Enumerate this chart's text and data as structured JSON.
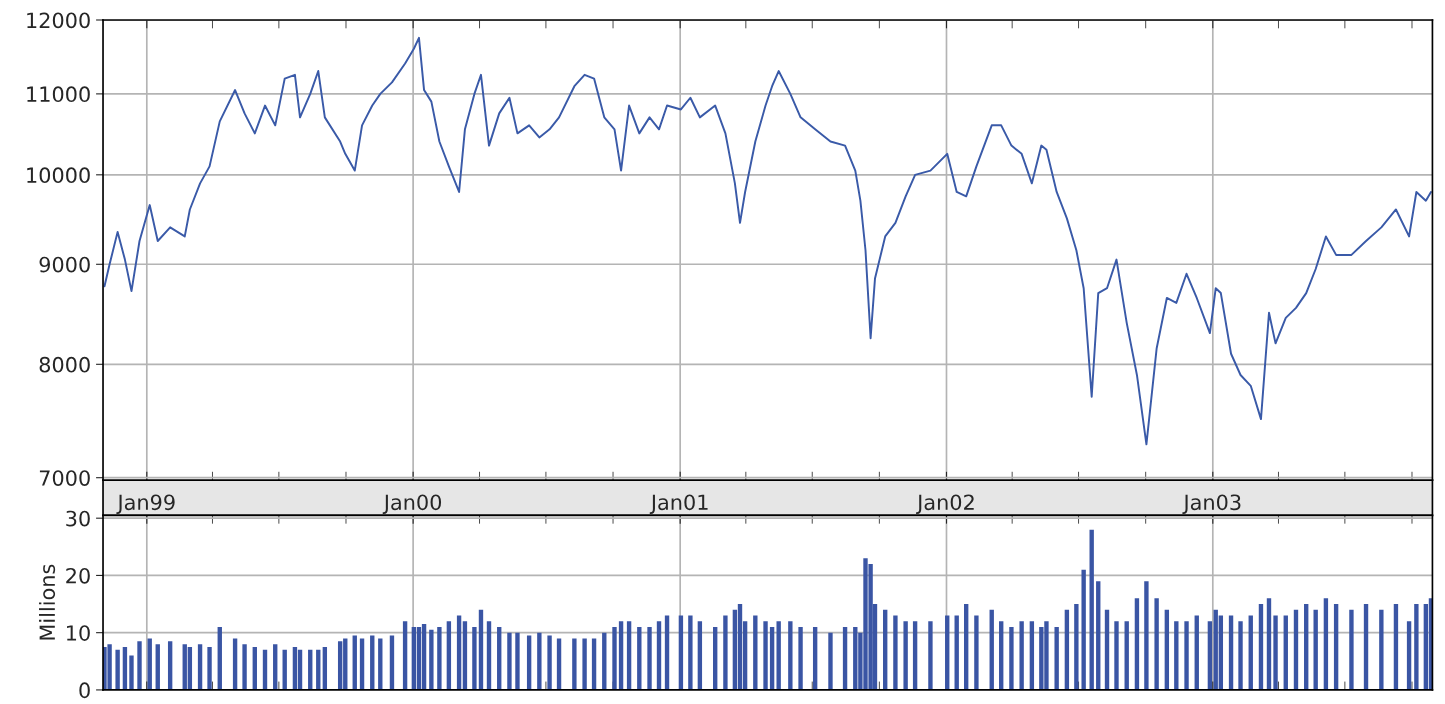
{
  "chart_data": [
    {
      "type": "line",
      "log": true,
      "grid": true,
      "ylim": [
        6980,
        12000
      ],
      "yticks": [
        7000,
        8000,
        9000,
        10000,
        11000,
        12000
      ],
      "xlim": [
        "1998-11-02",
        "2003-10-29"
      ],
      "xticks": [
        {
          "value": "1999-01-01",
          "label": "Jan99"
        },
        {
          "value": "1999-04-01",
          "label": null
        },
        {
          "value": "1999-07-01",
          "label": null
        },
        {
          "value": "1999-10-01",
          "label": null
        },
        {
          "value": "2000-01-01",
          "label": "Jan00"
        },
        {
          "value": "2000-04-01",
          "label": null
        },
        {
          "value": "2000-07-01",
          "label": null
        },
        {
          "value": "2000-10-01",
          "label": null
        },
        {
          "value": "2001-01-01",
          "label": "Jan01"
        },
        {
          "value": "2001-04-01",
          "label": null
        },
        {
          "value": "2001-07-01",
          "label": null
        },
        {
          "value": "2001-10-01",
          "label": null
        },
        {
          "value": "2002-01-01",
          "label": "Jan02"
        },
        {
          "value": "2002-04-01",
          "label": null
        },
        {
          "value": "2002-07-01",
          "label": null
        },
        {
          "value": "2002-10-01",
          "label": null
        },
        {
          "value": "2003-01-01",
          "label": "Jan03"
        },
        {
          "value": "2003-04-01",
          "label": null
        },
        {
          "value": "2003-07-01",
          "label": null
        },
        {
          "value": "2003-10-01",
          "label": null
        }
      ],
      "x": [
        "1998-11-04",
        "1998-11-11",
        "1998-11-22",
        "1998-12-02",
        "1998-12-11",
        "1998-12-22",
        "1999-01-05",
        "1999-01-16",
        "1999-02-02",
        "1999-02-22",
        "1999-03-01",
        "1999-03-15",
        "1999-03-28",
        "1999-04-11",
        "1999-05-02",
        "1999-05-15",
        "1999-05-29",
        "1999-06-12",
        "1999-06-26",
        "1999-07-09",
        "1999-07-23",
        "1999-07-30",
        "1999-08-13",
        "1999-08-24",
        "1999-09-02",
        "1999-09-23",
        "1999-09-30",
        "1999-10-13",
        "1999-10-23",
        "1999-11-06",
        "1999-11-17",
        "1999-12-03",
        "1999-12-21",
        "2000-01-02",
        "2000-01-09",
        "2000-01-16",
        "2000-01-26",
        "2000-02-06",
        "2000-02-19",
        "2000-03-04",
        "2000-03-12",
        "2000-03-25",
        "2000-04-03",
        "2000-04-14",
        "2000-04-28",
        "2000-05-12",
        "2000-05-23",
        "2000-06-08",
        "2000-06-22",
        "2000-07-06",
        "2000-07-19",
        "2000-08-09",
        "2000-08-23",
        "2000-09-05",
        "2000-09-19",
        "2000-10-03",
        "2000-10-12",
        "2000-10-23",
        "2000-11-06",
        "2000-11-20",
        "2000-12-03",
        "2000-12-14",
        "2001-01-02",
        "2001-01-15",
        "2001-01-28",
        "2001-02-18",
        "2001-03-04",
        "2001-03-17",
        "2001-03-24",
        "2001-03-31",
        "2001-04-14",
        "2001-04-28",
        "2001-05-07",
        "2001-05-16",
        "2001-06-01",
        "2001-06-15",
        "2001-07-05",
        "2001-07-26",
        "2001-08-15",
        "2001-08-29",
        "2001-09-05",
        "2001-09-12",
        "2001-09-19",
        "2001-09-25",
        "2001-10-09",
        "2001-10-23",
        "2001-11-06",
        "2001-11-19",
        "2001-12-10",
        "2002-01-02",
        "2002-01-15",
        "2002-01-28",
        "2002-02-11",
        "2002-03-04",
        "2002-03-17",
        "2002-03-31",
        "2002-04-14",
        "2002-04-28",
        "2002-05-11",
        "2002-05-18",
        "2002-06-01",
        "2002-06-15",
        "2002-06-28",
        "2002-07-08",
        "2002-07-19",
        "2002-07-28",
        "2002-08-09",
        "2002-08-22",
        "2002-09-05",
        "2002-09-19",
        "2002-10-02",
        "2002-10-16",
        "2002-10-30",
        "2002-11-12",
        "2002-11-26",
        "2002-12-10",
        "2002-12-28",
        "2003-01-05",
        "2003-01-12",
        "2003-01-26",
        "2003-02-08",
        "2003-02-22",
        "2003-03-08",
        "2003-03-19",
        "2003-03-28",
        "2003-04-11",
        "2003-04-25",
        "2003-05-09",
        "2003-05-22",
        "2003-06-05",
        "2003-06-19",
        "2003-07-10",
        "2003-07-30",
        "2003-08-20",
        "2003-09-09",
        "2003-09-27",
        "2003-10-07",
        "2003-10-20",
        "2003-10-27"
      ],
      "series": [
        {
          "color": "#3a5aa8",
          "values": [
            8770,
            9000,
            9350,
            9050,
            8720,
            9250,
            9650,
            9250,
            9400,
            9300,
            9600,
            9900,
            10100,
            10650,
            11050,
            10750,
            10500,
            10850,
            10600,
            11200,
            11250,
            10700,
            11000,
            11300,
            10700,
            10400,
            10250,
            10050,
            10600,
            10850,
            11000,
            11150,
            11400,
            11600,
            11750,
            11050,
            10900,
            10400,
            10100,
            9800,
            10550,
            11000,
            11250,
            10350,
            10750,
            10950,
            10500,
            10600,
            10450,
            10550,
            10700,
            11100,
            11250,
            11200,
            10700,
            10550,
            10050,
            10850,
            10500,
            10700,
            10550,
            10850,
            10800,
            10950,
            10700,
            10850,
            10500,
            9900,
            9450,
            9800,
            10400,
            10850,
            11100,
            11300,
            11000,
            10700,
            10550,
            10400,
            10350,
            10050,
            9700,
            9150,
            8250,
            8850,
            9300,
            9450,
            9750,
            10000,
            10050,
            10250,
            9800,
            9750,
            10100,
            10600,
            10600,
            10350,
            10250,
            9900,
            10350,
            10300,
            9800,
            9500,
            9150,
            8750,
            7700,
            8700,
            8750,
            9050,
            8400,
            7900,
            7280,
            8150,
            8650,
            8600,
            8900,
            8650,
            8300,
            8750,
            8700,
            8100,
            7900,
            7800,
            7500,
            8500,
            8200,
            8450,
            8550,
            8700,
            8950,
            9300,
            9100,
            9100,
            9250,
            9400,
            9600,
            9300,
            9800,
            9700,
            9800
          ]
        }
      ]
    },
    {
      "type": "bar",
      "grid": true,
      "tick_labels": "y",
      "ylabel": "Millions",
      "ylim": [
        0,
        30.5
      ],
      "yticks": [
        0,
        10,
        20,
        30
      ],
      "xlim": [
        "1998-11-02",
        "2003-10-29"
      ],
      "x": [
        "1998-11-04",
        "1998-11-11",
        "1998-11-22",
        "1998-12-02",
        "1998-12-11",
        "1998-12-22",
        "1999-01-05",
        "1999-01-16",
        "1999-02-02",
        "1999-02-22",
        "1999-03-01",
        "1999-03-15",
        "1999-03-28",
        "1999-04-11",
        "1999-05-02",
        "1999-05-15",
        "1999-05-29",
        "1999-06-12",
        "1999-06-26",
        "1999-07-09",
        "1999-07-23",
        "1999-07-30",
        "1999-08-13",
        "1999-08-24",
        "1999-09-02",
        "1999-09-23",
        "1999-09-30",
        "1999-10-13",
        "1999-10-23",
        "1999-11-06",
        "1999-11-17",
        "1999-12-03",
        "1999-12-21",
        "2000-01-02",
        "2000-01-09",
        "2000-01-16",
        "2000-01-26",
        "2000-02-06",
        "2000-02-19",
        "2000-03-04",
        "2000-03-12",
        "2000-03-25",
        "2000-04-03",
        "2000-04-14",
        "2000-04-28",
        "2000-05-12",
        "2000-05-23",
        "2000-06-08",
        "2000-06-22",
        "2000-07-06",
        "2000-07-19",
        "2000-08-09",
        "2000-08-23",
        "2000-09-05",
        "2000-09-19",
        "2000-10-03",
        "2000-10-12",
        "2000-10-23",
        "2000-11-06",
        "2000-11-20",
        "2000-12-03",
        "2000-12-14",
        "2001-01-02",
        "2001-01-15",
        "2001-01-28",
        "2001-02-18",
        "2001-03-04",
        "2001-03-17",
        "2001-03-24",
        "2001-03-31",
        "2001-04-14",
        "2001-04-28",
        "2001-05-07",
        "2001-05-16",
        "2001-06-01",
        "2001-06-15",
        "2001-07-05",
        "2001-07-26",
        "2001-08-15",
        "2001-08-29",
        "2001-09-05",
        "2001-09-12",
        "2001-09-19",
        "2001-09-25",
        "2001-10-09",
        "2001-10-23",
        "2001-11-06",
        "2001-11-19",
        "2001-12-10",
        "2002-01-02",
        "2002-01-15",
        "2002-01-28",
        "2002-02-11",
        "2002-03-04",
        "2002-03-17",
        "2002-03-31",
        "2002-04-14",
        "2002-04-28",
        "2002-05-11",
        "2002-05-18",
        "2002-06-01",
        "2002-06-15",
        "2002-06-28",
        "2002-07-08",
        "2002-07-19",
        "2002-07-28",
        "2002-08-09",
        "2002-08-22",
        "2002-09-05",
        "2002-09-19",
        "2002-10-02",
        "2002-10-16",
        "2002-10-30",
        "2002-11-12",
        "2002-11-26",
        "2002-12-10",
        "2002-12-28",
        "2003-01-05",
        "2003-01-12",
        "2003-01-26",
        "2003-02-08",
        "2003-02-22",
        "2003-03-08",
        "2003-03-19",
        "2003-03-28",
        "2003-04-11",
        "2003-04-25",
        "2003-05-09",
        "2003-05-22",
        "2003-06-05",
        "2003-06-19",
        "2003-07-10",
        "2003-07-30",
        "2003-08-20",
        "2003-09-09",
        "2003-09-27",
        "2003-10-07",
        "2003-10-20",
        "2003-10-27"
      ],
      "series": [
        {
          "color": "#3a55a4",
          "values": [
            7.5,
            8,
            7,
            7.5,
            6,
            8.5,
            9,
            8,
            8.5,
            8,
            7.5,
            8,
            7.5,
            11,
            9,
            8,
            7.5,
            7,
            8,
            7,
            7.5,
            7,
            7,
            7,
            7.5,
            8.5,
            9,
            9.5,
            9,
            9.5,
            9,
            9.5,
            12,
            11,
            11,
            11.5,
            10.5,
            11,
            12,
            13,
            12,
            11,
            14,
            12,
            11,
            10,
            10,
            9.5,
            10,
            9.5,
            9,
            9,
            9,
            9,
            10,
            11,
            12,
            12,
            11,
            11,
            12,
            13,
            13,
            13,
            12,
            11,
            13,
            14,
            15,
            12,
            13,
            12,
            11,
            12,
            12,
            11,
            11,
            10,
            11,
            11,
            10,
            23,
            22,
            15,
            14,
            13,
            12,
            12,
            12,
            13,
            13,
            15,
            13,
            14,
            12,
            11,
            12,
            12,
            11,
            12,
            11,
            14,
            15,
            21,
            28,
            19,
            14,
            12,
            12,
            16,
            19,
            16,
            14,
            12,
            12,
            13,
            12,
            14,
            13,
            13,
            12,
            13,
            15,
            16,
            13,
            13,
            14,
            15,
            14,
            16,
            15,
            14,
            15,
            14,
            15,
            12,
            15,
            15,
            16
          ]
        }
      ]
    }
  ]
}
